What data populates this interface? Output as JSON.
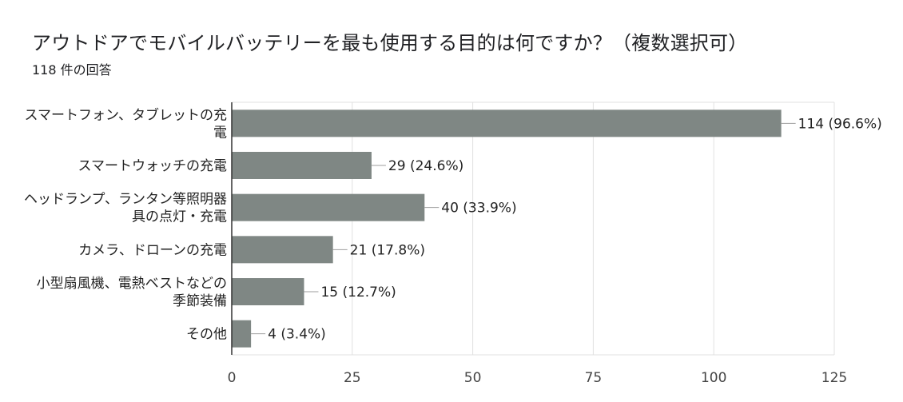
{
  "title": "アウトドアでモバイルバッテリーを最も使用する目的は何ですか？（複数選択可）",
  "subtitle": "118 件の回答",
  "colors": {
    "bar": "#7f8784",
    "grid": "#e0e0e0",
    "axis": "#333333",
    "connector": "#9e9e9e"
  },
  "chart_data": {
    "type": "bar",
    "orientation": "horizontal",
    "categories": [
      [
        "スマートフォン、タブレットの充",
        "電"
      ],
      [
        "スマートウォッチの充電"
      ],
      [
        "ヘッドランプ、ランタン等照明器",
        "具の点灯・充電"
      ],
      [
        "カメラ、ドローンの充電"
      ],
      [
        "小型扇風機、電熱ベストなどの",
        "季節装備"
      ],
      [
        "その他"
      ]
    ],
    "values": [
      114,
      29,
      40,
      21,
      15,
      4
    ],
    "data_labels": [
      "114 (96.6%)",
      "29 (24.6%)",
      "40 (33.9%)",
      "21 (17.8%)",
      "15 (12.7%)",
      "4 (3.4%)"
    ],
    "xlim": [
      0,
      125
    ],
    "xticks": [
      0,
      25,
      50,
      75,
      100,
      125
    ],
    "grid": true
  }
}
